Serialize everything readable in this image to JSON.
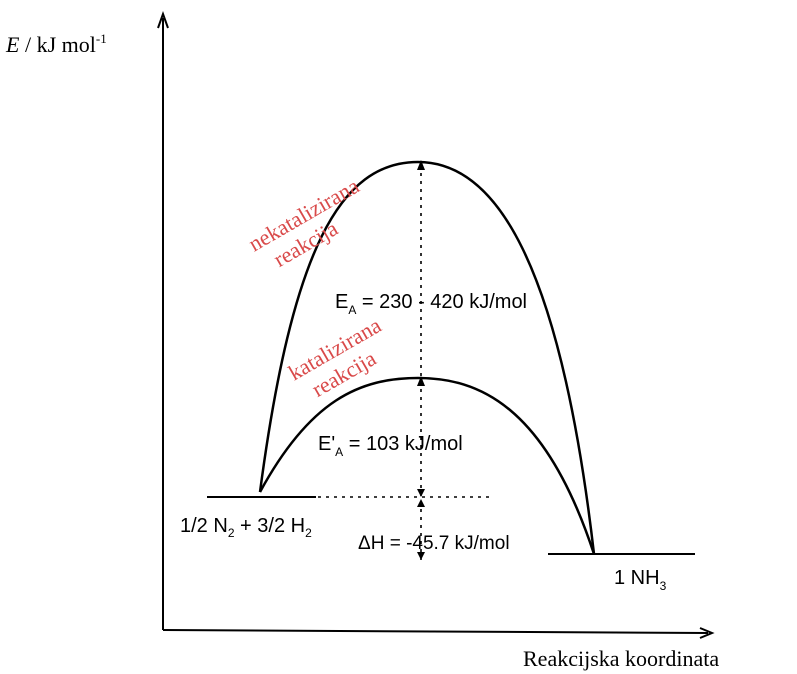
{
  "axes": {
    "y_label_symbol": "E",
    "y_label_unit": " / kJ mol",
    "y_label_exp": "-1",
    "x_label": "Reakcijska koordinata"
  },
  "curves": {
    "uncatalyzed_label_line1": "nekatalizirana",
    "uncatalyzed_label_line2": "reakcija",
    "catalyzed_label_line1": "katalizirana",
    "catalyzed_label_line2": "reakcija"
  },
  "energies": {
    "ea_symbol": "E",
    "ea_sub": "A",
    "ea_value": " = 230 - 420 kJ/mol",
    "ea_cat_symbol": "E'",
    "ea_cat_sub": "A",
    "ea_cat_value": " = 103 kJ/mol",
    "dh_text": "ΔH = -45.7 kJ/mol"
  },
  "levels": {
    "reactants_p1": "1/2 N",
    "reactants_sub1": "2",
    "reactants_p2": " + 3/2 H",
    "reactants_sub2": "2",
    "product_p1": "1 NH",
    "product_sub": "3"
  },
  "colors": {
    "line": "#000000",
    "annotation": "#d94a4a"
  }
}
